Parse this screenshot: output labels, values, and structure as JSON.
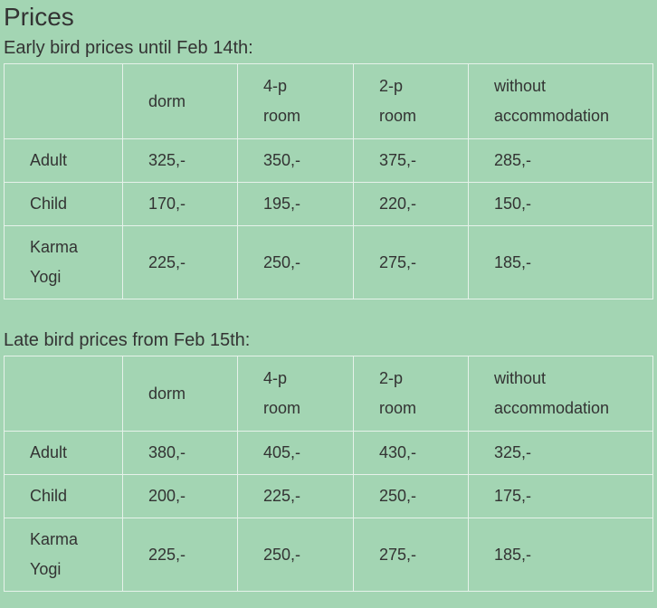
{
  "title": "Prices",
  "sections": [
    {
      "heading": "Early bird prices until Feb 14th:",
      "table": {
        "header": [
          "dorm",
          "4-p room",
          "2-p room",
          "without accommodation"
        ],
        "rows": [
          [
            "Adult",
            "325,-",
            "350,-",
            "375,-",
            "285,-"
          ],
          [
            "Child",
            "170,-",
            "195,-",
            "220,-",
            "150,-"
          ],
          [
            "Karma Yogi",
            "225,-",
            "250,-",
            "275,-",
            "185,-"
          ]
        ]
      }
    },
    {
      "heading": "Late bird prices from Feb 15th:",
      "table": {
        "header": [
          "dorm",
          "4-p room",
          "2-p room",
          "without accommodation"
        ],
        "rows": [
          [
            "Adult",
            "380,-",
            "405,-",
            "430,-",
            "325,-"
          ],
          [
            "Child",
            "200,-",
            "225,-",
            "250,-",
            "175,-"
          ],
          [
            "Karma Yogi",
            "225,-",
            "250,-",
            "275,-",
            "185,-"
          ]
        ]
      }
    }
  ]
}
